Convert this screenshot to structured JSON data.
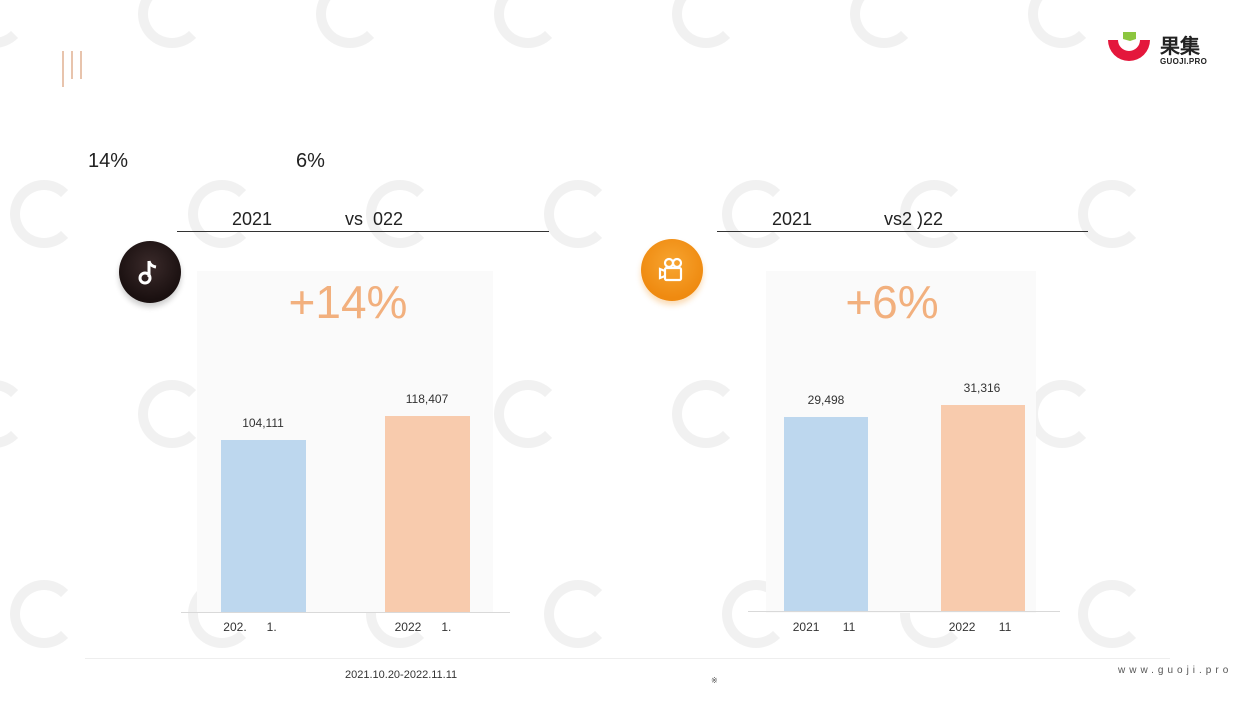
{
  "brand": {
    "cn": "果集",
    "en": "GUOJI.PRO",
    "colors": {
      "red": "#e4173c",
      "green": "#8cc63f"
    }
  },
  "summary": {
    "left_pct": "14%",
    "right_pct": "6%"
  },
  "panels": [
    {
      "icon": "music-note-icon",
      "header": {
        "year_a": "2021",
        "vs": "vs  022"
      },
      "growth": "+14%",
      "categories": [
        {
          "year": "202.",
          "suffix": "1."
        },
        {
          "year": "2022",
          "suffix": "1."
        }
      ],
      "value_labels": [
        "104,111",
        "118,407"
      ]
    },
    {
      "icon": "video-camera-icon",
      "header": {
        "year_a": "2021",
        "vs": "vs2 )22"
      },
      "growth": "+6%",
      "categories": [
        {
          "year": "2021",
          "suffix": "11"
        },
        {
          "year": "2022",
          "suffix": "11"
        }
      ],
      "value_labels": [
        "29,498",
        "31,316"
      ]
    }
  ],
  "chart_data": [
    {
      "type": "bar",
      "categories": [
        "2021",
        "2022"
      ],
      "values": [
        104111,
        118407
      ],
      "colors": [
        "#bdd7ee",
        "#f8cbad"
      ],
      "ylim": [
        0,
        148000
      ]
    },
    {
      "type": "bar",
      "categories": [
        "2021",
        "2022"
      ],
      "values": [
        29498,
        31316
      ],
      "colors": [
        "#bdd7ee",
        "#f8cbad"
      ],
      "ylim": [
        0,
        37000
      ]
    }
  ],
  "footer": {
    "date_range": "2021.10.20-2022.11.11",
    "mark": "※",
    "url": "www.guoji.pro"
  }
}
